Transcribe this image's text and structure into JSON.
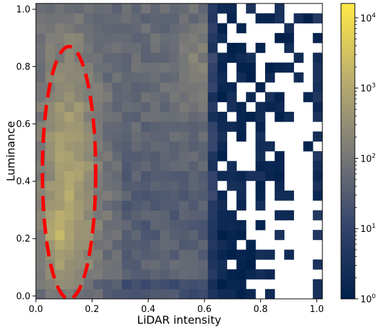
{
  "chart_data": {
    "type": "heatmap",
    "title": "",
    "xlabel": "LiDAR intensity",
    "ylabel": "Luminance",
    "xlim": [
      0.0,
      1.02
    ],
    "ylim": [
      -0.01,
      1.02
    ],
    "x_ticks": [
      "0.0",
      "0.2",
      "0.4",
      "0.6",
      "0.8",
      "1.0"
    ],
    "y_ticks": [
      "0.0",
      "0.2",
      "0.4",
      "0.6",
      "0.8",
      "1.0"
    ],
    "x_tick_values": [
      0.0,
      0.2,
      0.4,
      0.6,
      0.8,
      1.0
    ],
    "y_tick_values": [
      0.0,
      0.2,
      0.4,
      0.6,
      0.8,
      1.0
    ],
    "bins": {
      "x_count": 30,
      "y_count": 30,
      "x_range": [
        0.0,
        1.02
      ],
      "y_range": [
        -0.01,
        1.02
      ]
    },
    "colormap": "cividis",
    "colorbar": {
      "scale": "log",
      "range": [
        1,
        16000
      ],
      "ticks": [
        {
          "value": 1,
          "base": "10",
          "exp": "0"
        },
        {
          "value": 10,
          "base": "10",
          "exp": "1"
        },
        {
          "value": 100,
          "base": "10",
          "exp": "2"
        },
        {
          "value": 1000,
          "base": "10",
          "exp": "3"
        },
        {
          "value": 10000,
          "base": "10",
          "exp": "4"
        }
      ]
    },
    "annotation": {
      "shape": "ellipse",
      "style": "dashed",
      "color": "#ff0000",
      "center": [
        0.118,
        0.43
      ],
      "x_radius": 0.095,
      "y_radius": 0.44
    },
    "grid": false
  }
}
